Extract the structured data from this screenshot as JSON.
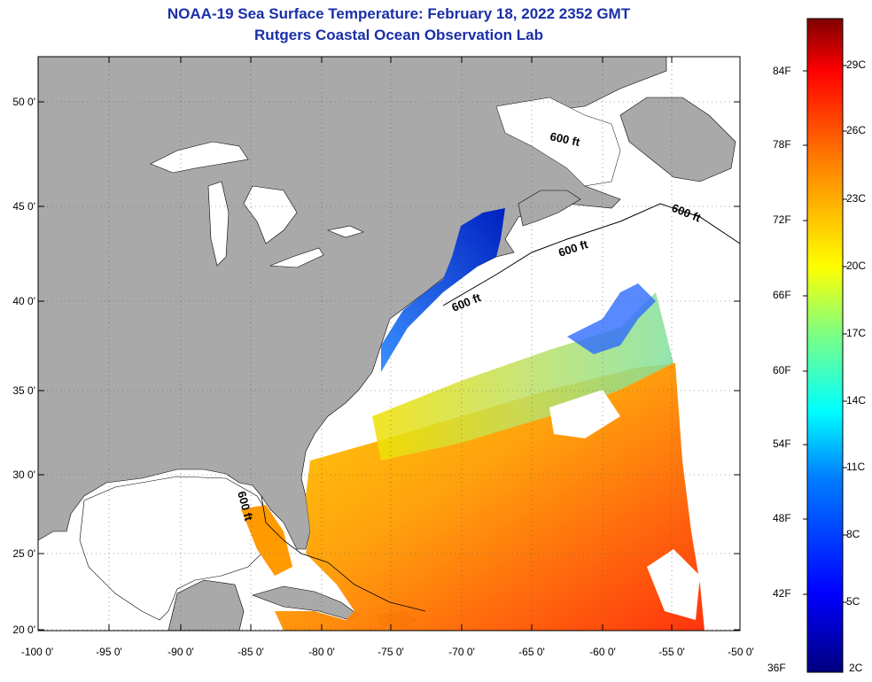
{
  "title_line1": "NOAA-19 Sea Surface Temperature:  February 18, 2022 2352 GMT",
  "title_line2": "Rutgers Coastal Ocean Observation Lab",
  "lat_labels": [
    "50 0'",
    "45 0'",
    "40 0'",
    "35 0'",
    "30 0'",
    "25 0'",
    "20 0'"
  ],
  "lon_labels": [
    "-100 0'",
    "-95 0'",
    "-90 0'",
    "-85 0'",
    "-80 0'",
    "-75 0'",
    "-70 0'",
    "-65 0'",
    "-60 0'",
    "-55 0'",
    "-50 0'"
  ],
  "contour_labels": [
    "600 ft",
    "600 ft",
    "600 ft",
    "600 ft",
    "600 ft"
  ],
  "colorbar": {
    "fahrenheit_labels": [
      "84F",
      "78F",
      "72F",
      "66F",
      "60F",
      "54F",
      "48F",
      "42F",
      "36F"
    ],
    "celsius_labels": [
      "29C",
      "26C",
      "23C",
      "20C",
      "17C",
      "14C",
      "11C",
      "8C",
      "5C",
      "2C"
    ],
    "min_f": 36,
    "max_f": 86
  },
  "colors": {
    "land": "#a9a9a9",
    "cloud": "#ffffff",
    "title": "#1a2fa8"
  }
}
